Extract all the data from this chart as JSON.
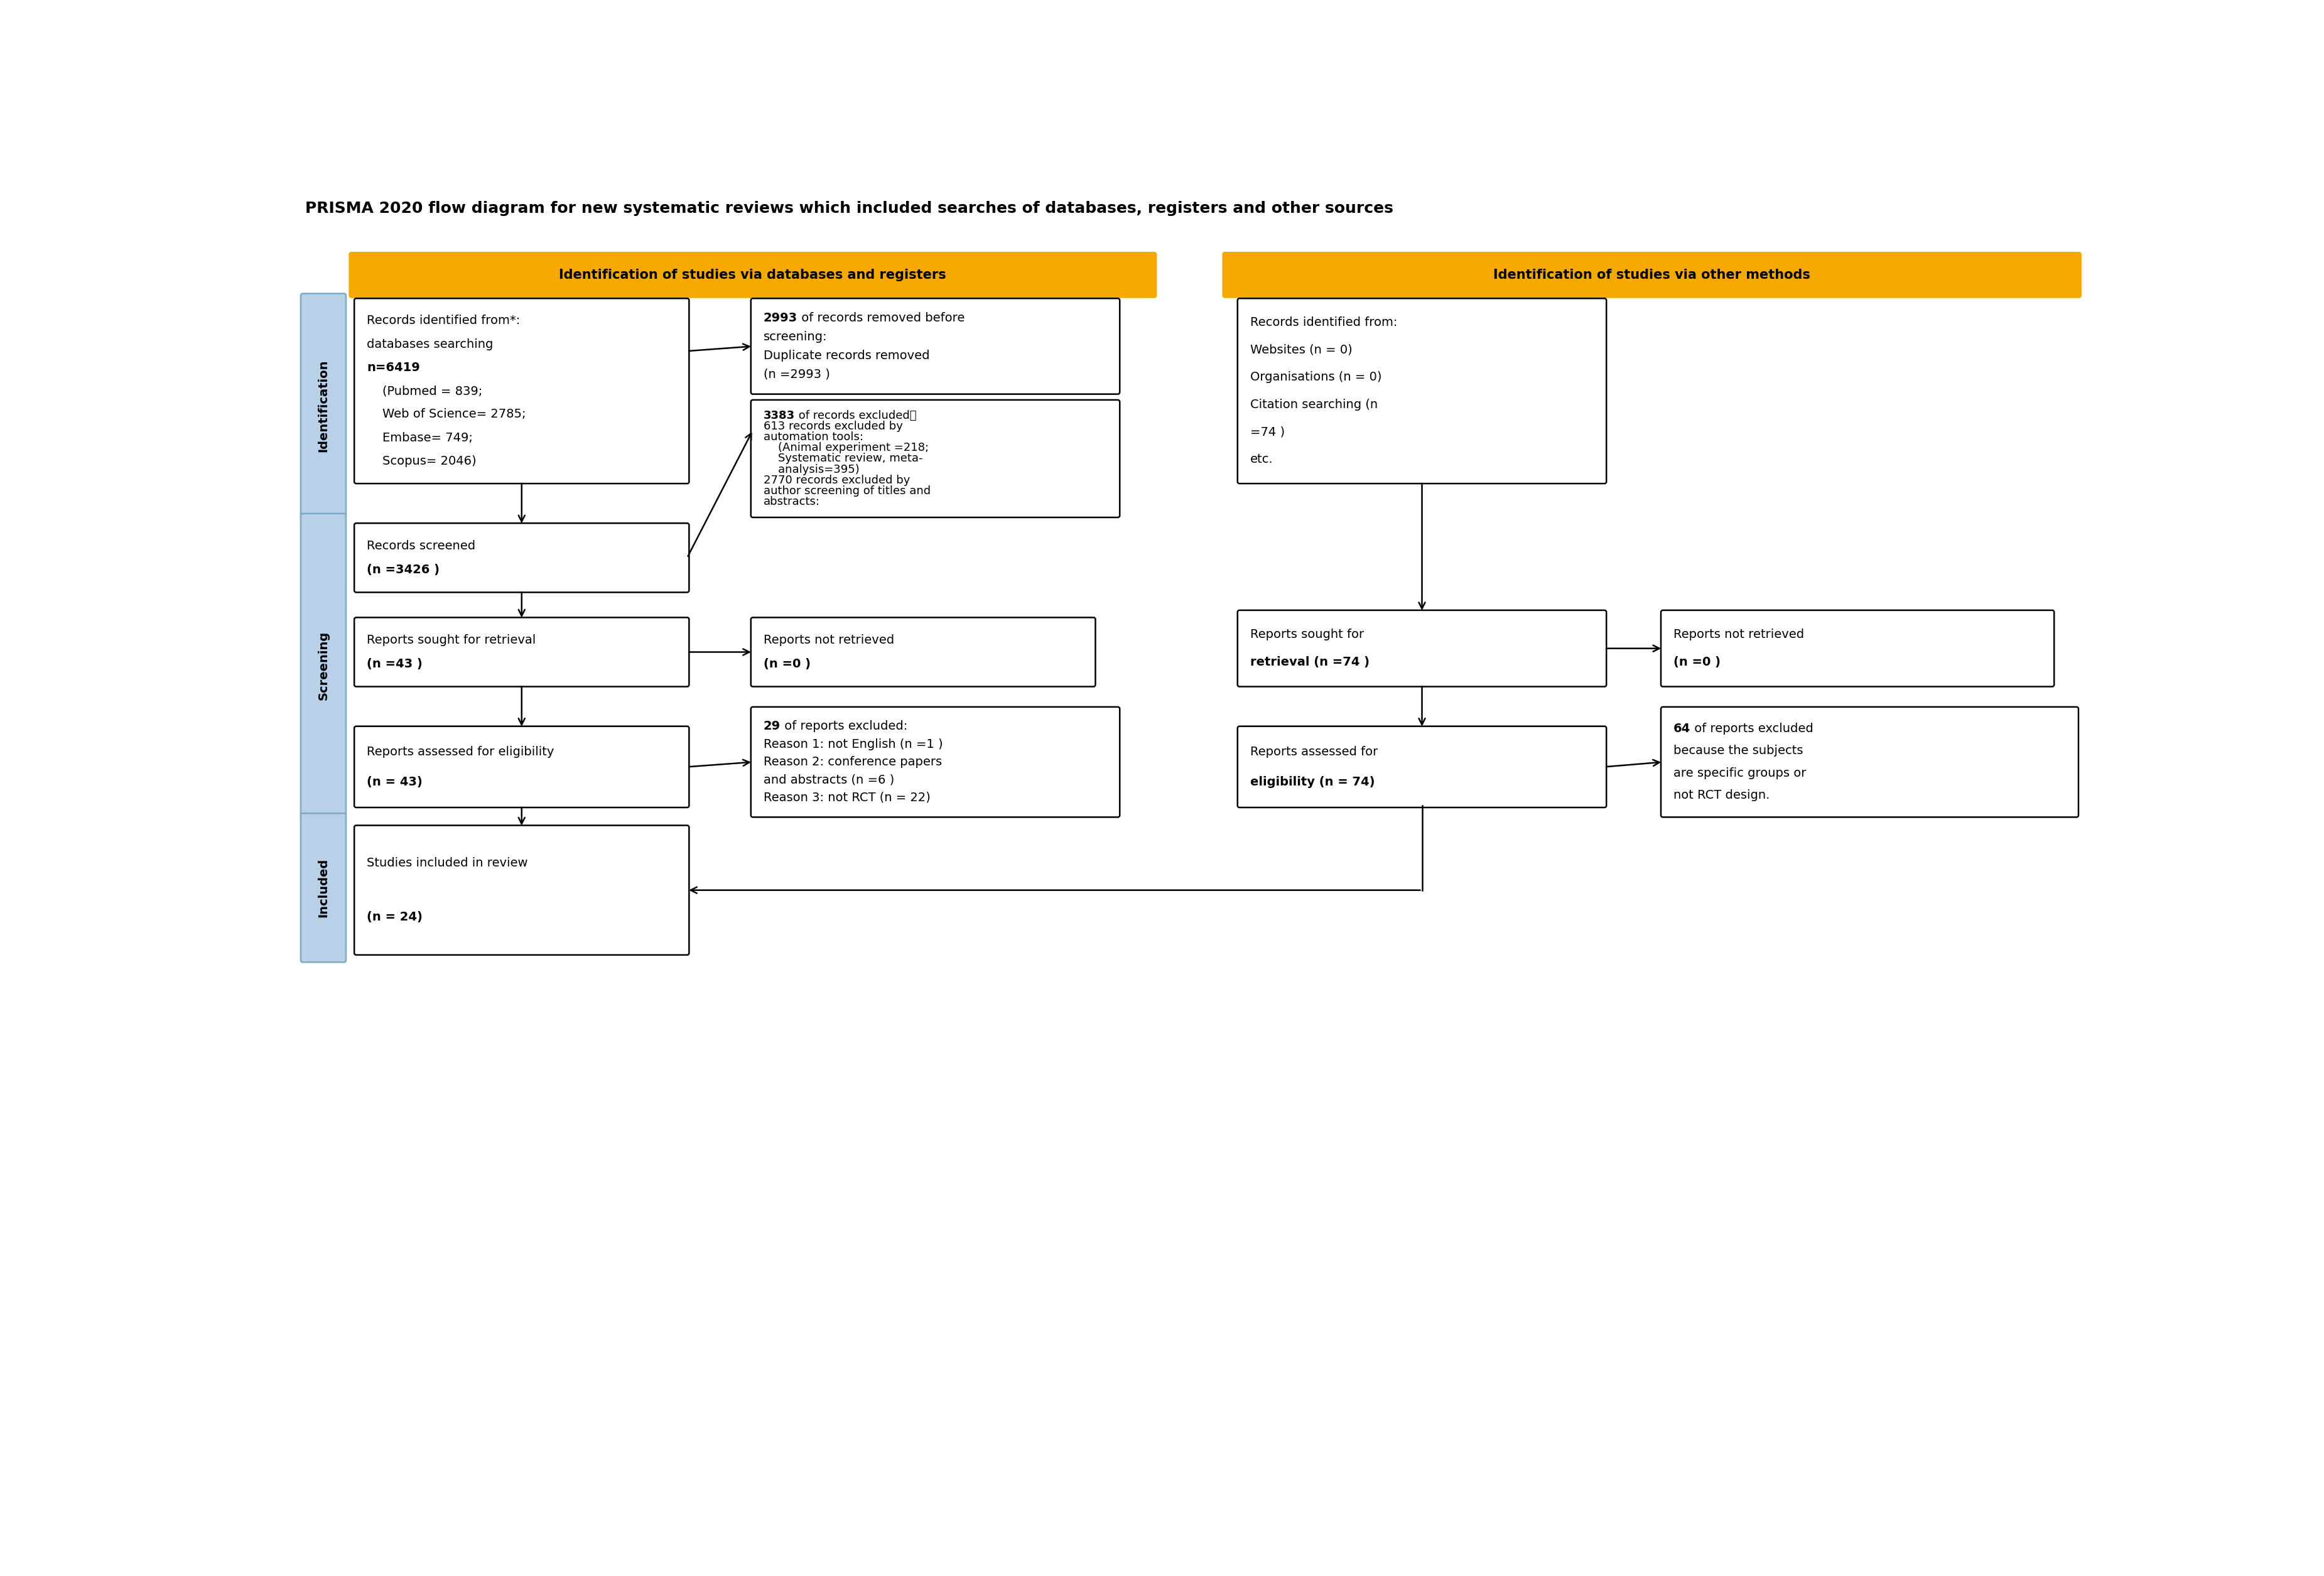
{
  "title": "PRISMA 2020 flow diagram for new systematic reviews which included searches of databases, registers and other sources",
  "title_fontsize": 18,
  "header1": "Identification of studies via databases and registers",
  "header2": "Identification of studies via other methods",
  "header_color": "#F5A800",
  "box_border_color": "#000000",
  "box_bg_color": "#FFFFFF",
  "side_label_bg": "#B8D0E8",
  "side_label_border": "#7AAAC8",
  "font_size": 14,
  "background_color": "#FFFFFF",
  "b1_lines": [
    [
      "Records identified from*:",
      false
    ],
    [
      "databases searching",
      false
    ],
    [
      "n=6419",
      true
    ],
    [
      "    (Pubmed = 839;",
      false
    ],
    [
      "    Web of Science= 2785;",
      false
    ],
    [
      "    Embase= 749;",
      false
    ],
    [
      "    Scopus= 2046)",
      false
    ]
  ],
  "b2_lines": [
    [
      "2993",
      true,
      " of records removed before"
    ],
    [
      "screening:",
      false,
      ""
    ],
    [
      "Duplicate records removed",
      false,
      ""
    ],
    [
      "(n =2993 )",
      false,
      ""
    ]
  ],
  "b3_lines": [
    [
      "3383",
      true,
      " of records excluded："
    ],
    [
      "613 records excluded by",
      false,
      ""
    ],
    [
      "automation tools:",
      false,
      ""
    ],
    [
      "    (Animal experiment =218;",
      false,
      ""
    ],
    [
      "    Systematic review, meta-",
      false,
      ""
    ],
    [
      "    analysis=395)",
      false,
      ""
    ],
    [
      "2770 records excluded by",
      false,
      ""
    ],
    [
      "author screening of titles and",
      false,
      ""
    ],
    [
      "abstracts:",
      false,
      ""
    ]
  ],
  "b4_lines": [
    [
      "Records screened",
      false
    ],
    [
      "(n =3426 )",
      true
    ]
  ],
  "b5_lines": [
    [
      "Reports sought for retrieval",
      false
    ],
    [
      "(n =43 )",
      true
    ]
  ],
  "b6_lines": [
    [
      "Reports not retrieved",
      false
    ],
    [
      "(n =0 )",
      true
    ]
  ],
  "b7_lines": [
    [
      "Reports assessed for eligibility",
      false
    ],
    [
      "(n = 43)",
      true
    ]
  ],
  "b8_lines": [
    [
      "29",
      true,
      " of reports excluded:"
    ],
    [
      "Reason 1: not English (n =1 )",
      false,
      ""
    ],
    [
      "Reason 2: conference papers",
      false,
      ""
    ],
    [
      "and abstracts (n =6 )",
      false,
      ""
    ],
    [
      "Reason 3: not RCT (n = 22)",
      false,
      ""
    ]
  ],
  "b9_lines": [
    [
      "Studies included in review",
      false
    ],
    [
      "(n = 24)",
      true
    ]
  ],
  "b10_lines": [
    [
      "Records identified from:",
      false
    ],
    [
      "Websites (n = 0)",
      false
    ],
    [
      "Organisations (n = 0)",
      false
    ],
    [
      "Citation searching (n",
      false
    ],
    [
      "=74 )",
      false
    ],
    [
      "etc.",
      false
    ]
  ],
  "b11_lines": [
    [
      "Reports sought for",
      false
    ],
    [
      "retrieval (n =74 )",
      true
    ]
  ],
  "b12_lines": [
    [
      "Reports not retrieved",
      false
    ],
    [
      "(n =0 )",
      true
    ]
  ],
  "b13_lines": [
    [
      "Reports assessed for",
      false
    ],
    [
      "eligibility (n = 74)",
      true
    ]
  ],
  "b14_lines": [
    [
      "64",
      true,
      " of reports excluded"
    ],
    [
      "because the subjects",
      false,
      ""
    ],
    [
      "are specific groups or",
      false,
      ""
    ],
    [
      "not RCT design.",
      false,
      ""
    ]
  ]
}
